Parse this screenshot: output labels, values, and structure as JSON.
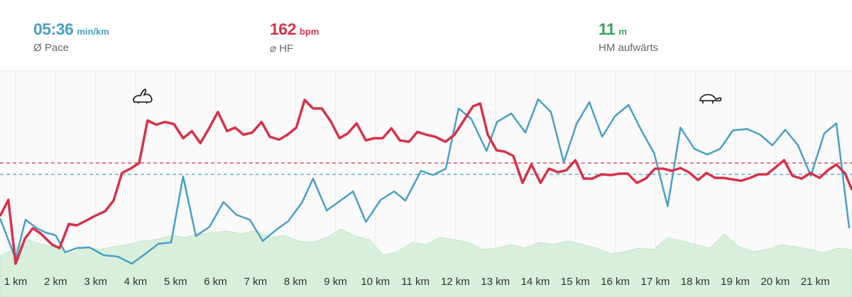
{
  "header": {
    "stats": [
      {
        "value": "05:36",
        "unit": "min/km",
        "label": "Ø Pace",
        "color": "#4a9fc4"
      },
      {
        "value": 162,
        "unit": "bpm",
        "label": "⌀ HF",
        "color": "#d5324b"
      },
      {
        "value": 11,
        "unit": "m",
        "label": "HM aufwärts",
        "color": "#3da35d"
      }
    ]
  },
  "chart_data": {
    "type": "line",
    "xlim": [
      0.61,
      21.92
    ],
    "ylim": [
      0,
      320
    ],
    "grid": true,
    "xticks": [
      {
        "value": 1,
        "label": "1 km"
      },
      {
        "value": 2,
        "label": "2 km"
      },
      {
        "value": 3,
        "label": "3 km"
      },
      {
        "value": 4,
        "label": "4 km"
      },
      {
        "value": 5,
        "label": "5 km"
      },
      {
        "value": 6,
        "label": "6 km"
      },
      {
        "value": 7,
        "label": "7 km"
      },
      {
        "value": 8,
        "label": "8 km"
      },
      {
        "value": 9,
        "label": "9 km"
      },
      {
        "value": 10,
        "label": "10 km"
      },
      {
        "value": 11,
        "label": "11 km"
      },
      {
        "value": 12,
        "label": "12 km"
      },
      {
        "value": 13,
        "label": "13 km"
      },
      {
        "value": 14,
        "label": "14 km"
      },
      {
        "value": 15,
        "label": "15 km"
      },
      {
        "value": 16,
        "label": "16 km"
      },
      {
        "value": 17,
        "label": "17 km"
      },
      {
        "value": 18,
        "label": "18 km"
      },
      {
        "value": 19,
        "label": "19 km"
      },
      {
        "value": 20,
        "label": "20 km"
      },
      {
        "value": 21,
        "label": "21 km"
      }
    ],
    "series": [
      {
        "type": "area",
        "color": "#d8efdb",
        "x": [
          0.61,
          0.97,
          1.32,
          1.68,
          2.03,
          2.39,
          2.74,
          3.1,
          3.45,
          3.81,
          4.16,
          4.52,
          4.87,
          5.23,
          5.58,
          5.94,
          6.29,
          6.65,
          7.0,
          7.36,
          7.71,
          8.07,
          8.42,
          8.78,
          9.14,
          9.49,
          9.85,
          10.2,
          10.56,
          10.91,
          11.27,
          11.62,
          11.98,
          12.33,
          12.69,
          13.04,
          13.4,
          13.75,
          14.11,
          14.46,
          14.82,
          15.18,
          15.53,
          15.89,
          16.24,
          16.6,
          16.95,
          17.31,
          17.66,
          18.02,
          18.37,
          18.73,
          19.08,
          19.44,
          19.79,
          20.15,
          20.5,
          20.86,
          21.22,
          21.57,
          21.92
        ],
        "values": [
          59,
          67,
          81,
          74,
          69,
          61,
          71,
          67,
          71,
          74,
          79,
          81,
          87,
          84,
          89,
          91,
          93,
          89,
          94,
          84,
          87,
          79,
          77,
          84,
          96,
          86,
          81,
          59,
          64,
          77,
          74,
          84,
          81,
          77,
          67,
          69,
          74,
          69,
          77,
          74,
          79,
          74,
          69,
          61,
          64,
          69,
          67,
          84,
          79,
          74,
          69,
          89,
          71,
          64,
          67,
          74,
          71,
          67,
          62,
          69,
          67
        ]
      },
      {
        "type": "line",
        "color": "#4a9fc4",
        "average": 173,
        "x": [
          0.61,
          1.0,
          1.25,
          1.53,
          1.75,
          2.0,
          2.24,
          2.53,
          2.85,
          3.2,
          3.56,
          3.91,
          4.27,
          4.57,
          4.89,
          5.19,
          5.51,
          5.85,
          6.2,
          6.52,
          6.86,
          7.18,
          7.5,
          7.82,
          8.16,
          8.44,
          8.78,
          9.1,
          9.44,
          9.76,
          10.13,
          10.47,
          10.75,
          11.14,
          11.44,
          11.76,
          12.08,
          12.4,
          12.78,
          13.04,
          13.4,
          13.75,
          14.07,
          14.39,
          14.71,
          15.03,
          15.35,
          15.67,
          15.99,
          16.33,
          16.67,
          16.97,
          17.31,
          17.63,
          17.98,
          18.3,
          18.62,
          18.94,
          19.3,
          19.62,
          19.93,
          20.25,
          20.57,
          20.89,
          21.23,
          21.53,
          21.85
        ],
        "values": [
          111,
          54,
          109,
          97,
          91,
          87,
          63,
          69,
          70,
          59,
          57,
          47,
          62,
          75,
          77,
          170,
          86,
          99,
          134,
          116,
          109,
          79,
          94,
          107,
          133,
          167,
          122,
          135,
          149,
          106,
          137,
          149,
          136,
          178,
          172,
          181,
          266,
          251,
          206,
          247,
          259,
          232,
          279,
          261,
          190,
          244,
          275,
          226,
          255,
          271,
          233,
          203,
          128,
          239,
          209,
          201,
          209,
          235,
          237,
          229,
          214,
          236,
          214,
          171,
          231,
          245,
          97
        ]
      },
      {
        "type": "line",
        "color": "#d5324b",
        "average": 189,
        "x": [
          0.61,
          0.82,
          1.0,
          1.23,
          1.43,
          1.64,
          1.91,
          2.1,
          2.33,
          2.53,
          2.74,
          3.01,
          3.24,
          3.45,
          3.66,
          3.9,
          4.09,
          4.3,
          4.52,
          4.73,
          4.96,
          5.19,
          5.41,
          5.62,
          5.85,
          6.06,
          6.29,
          6.49,
          6.7,
          6.92,
          7.15,
          7.36,
          7.59,
          7.8,
          8.02,
          8.23,
          8.44,
          8.66,
          8.89,
          9.1,
          9.31,
          9.53,
          9.76,
          9.97,
          10.18,
          10.4,
          10.61,
          10.84,
          11.05,
          11.27,
          11.5,
          11.75,
          11.98,
          12.21,
          12.44,
          12.62,
          12.81,
          13.03,
          13.24,
          13.45,
          13.68,
          13.9,
          14.13,
          14.34,
          14.57,
          14.78,
          15.0,
          15.21,
          15.42,
          15.65,
          15.89,
          16.1,
          16.31,
          16.54,
          16.76,
          16.99,
          17.2,
          17.41,
          17.63,
          17.84,
          18.07,
          18.28,
          18.5,
          18.71,
          18.92,
          19.15,
          19.37,
          19.58,
          19.79,
          20.01,
          20.22,
          20.43,
          20.66,
          20.88,
          21.11,
          21.32,
          21.53,
          21.75,
          21.92
        ],
        "values": [
          114,
          137,
          47,
          82,
          97,
          89,
          74,
          69,
          103,
          101,
          107,
          115,
          121,
          136,
          175,
          182,
          189,
          249,
          243,
          247,
          244,
          224,
          234,
          217,
          239,
          261,
          234,
          239,
          229,
          232,
          247,
          226,
          222,
          229,
          239,
          278,
          266,
          266,
          247,
          224,
          231,
          245,
          221,
          224,
          224,
          238,
          221,
          219,
          233,
          229,
          226,
          219,
          229,
          249,
          269,
          273,
          229,
          207,
          205,
          199,
          161,
          187,
          161,
          181,
          176,
          179,
          193,
          167,
          167,
          173,
          172,
          174,
          174,
          161,
          167,
          181,
          181,
          178,
          182,
          176,
          165,
          175,
          168,
          168,
          166,
          164,
          168,
          173,
          173,
          183,
          193,
          171,
          167,
          175,
          168,
          179,
          187,
          174,
          151
        ]
      }
    ]
  }
}
